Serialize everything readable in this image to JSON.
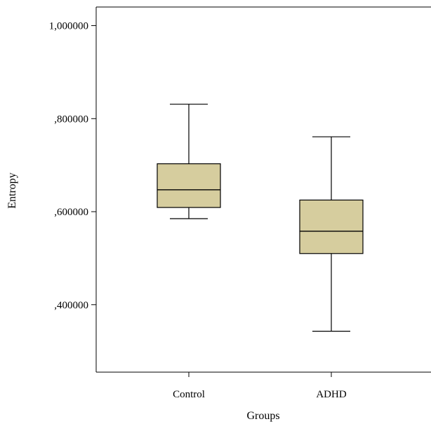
{
  "chart_data": {
    "type": "boxplot",
    "xlabel": "Groups",
    "ylabel": "Entropy",
    "categories": [
      "Control",
      "ADHD"
    ],
    "y_ticks": [
      {
        "value": 1.0,
        "label": "1,000000"
      },
      {
        "value": 0.8,
        "label": ",800000"
      },
      {
        "value": 0.6,
        "label": ",600000"
      },
      {
        "value": 0.4,
        "label": ",400000"
      }
    ],
    "ylim": [
      0.255,
      1.04
    ],
    "box_fill_color": "#d6cd9e",
    "boxes": [
      {
        "category": "Control",
        "min": 0.585,
        "q1": 0.609,
        "median": 0.647,
        "q3": 0.703,
        "max": 0.831
      },
      {
        "category": "ADHD",
        "min": 0.343,
        "q1": 0.51,
        "median": 0.558,
        "q3": 0.625,
        "max": 0.761
      }
    ],
    "grid": false,
    "legend": "none"
  }
}
